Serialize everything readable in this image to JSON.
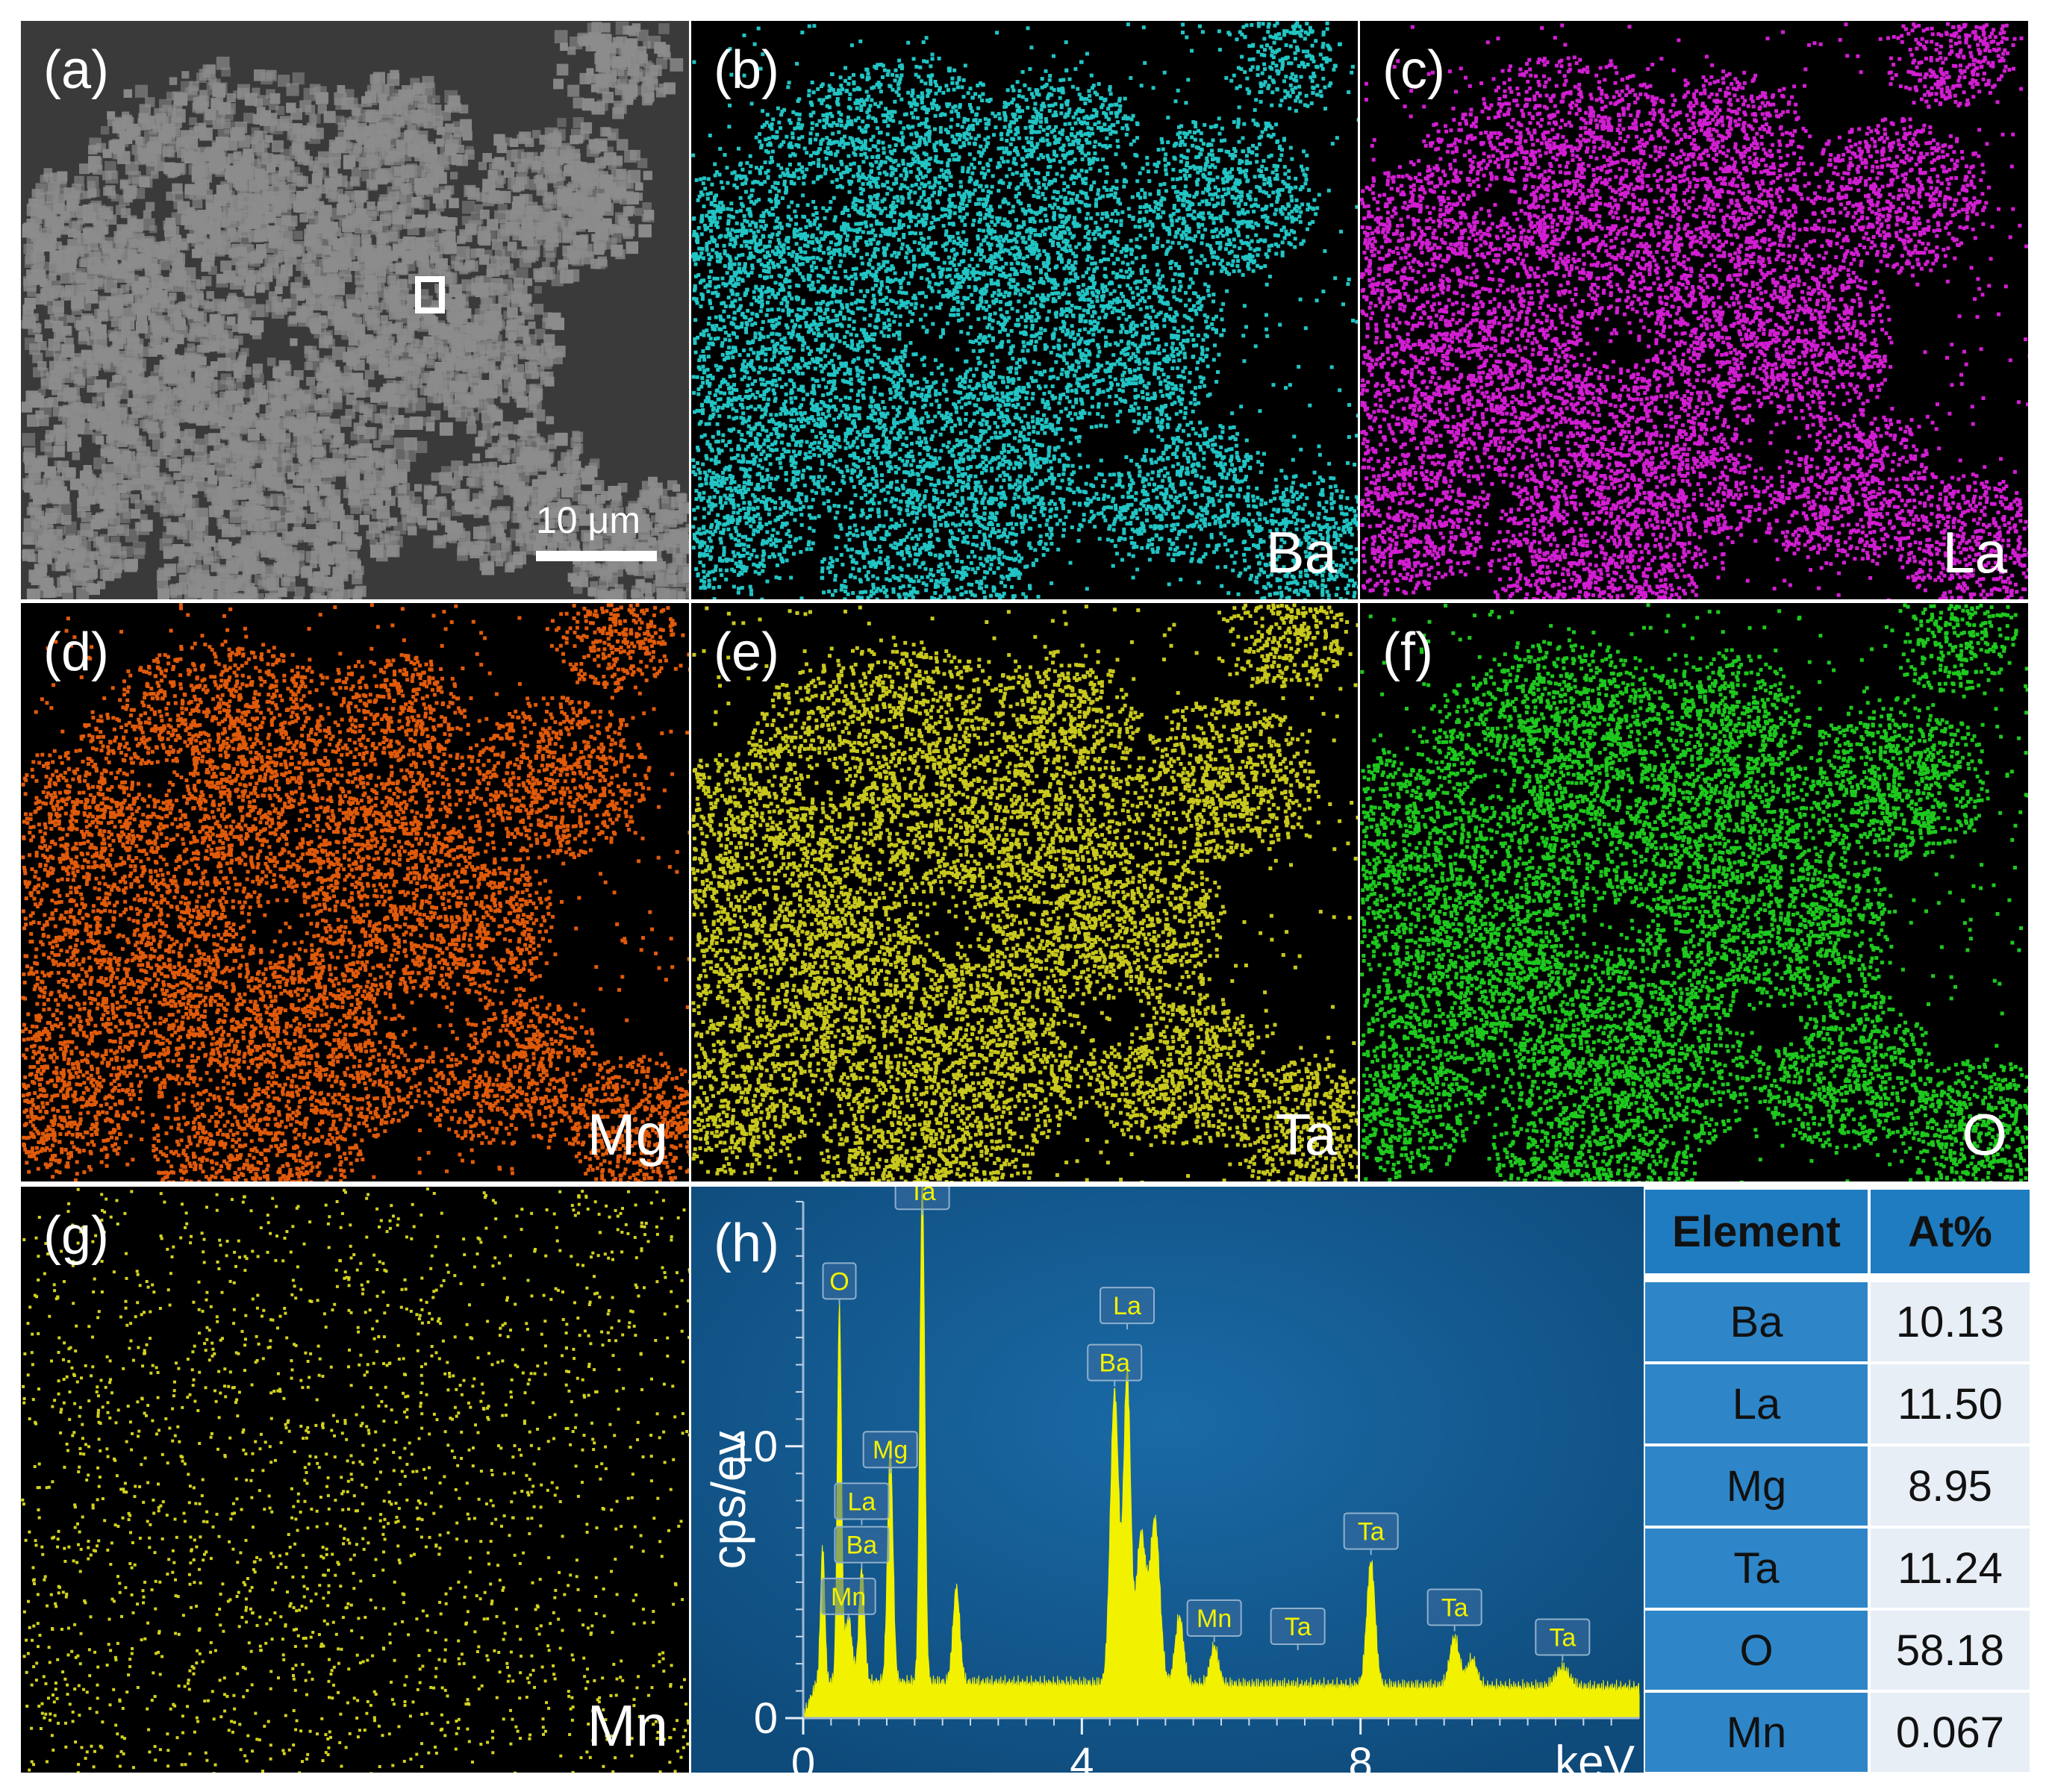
{
  "panels": [
    {
      "id": "a",
      "label": "(a)",
      "element": "",
      "kind": "sem",
      "color": "#8c8c8c"
    },
    {
      "id": "b",
      "label": "(b)",
      "element": "Ba",
      "kind": "map",
      "color": "#22c4c4"
    },
    {
      "id": "c",
      "label": "(c)",
      "element": "La",
      "kind": "map",
      "color": "#d21ed2"
    },
    {
      "id": "d",
      "label": "(d)",
      "element": "Mg",
      "kind": "map",
      "color": "#e05a0a"
    },
    {
      "id": "e",
      "label": "(e)",
      "element": "Ta",
      "kind": "map",
      "color": "#c8c81e"
    },
    {
      "id": "f",
      "label": "(f)",
      "element": "O",
      "kind": "map",
      "color": "#1ec81e"
    },
    {
      "id": "g",
      "label": "(g)",
      "element": "Mn",
      "kind": "sparse",
      "color": "#d2d21e"
    }
  ],
  "scale_bar": {
    "text": "10 μm"
  },
  "chart_data": {
    "type": "area",
    "label": "(h)",
    "xlabel": "keV",
    "ylabel": "cps/ev",
    "xlim": [
      0,
      12
    ],
    "ylim": [
      0,
      19
    ],
    "x_ticks": [
      0,
      4,
      8
    ],
    "y_ticks": [
      0,
      10
    ],
    "background": "#0e4a7a",
    "fill_color": "#f2f200",
    "baseline": 1.3,
    "peaks": [
      {
        "x": 0.28,
        "y": 5.0,
        "w": 0.03
      },
      {
        "x": 0.52,
        "y": 13.8,
        "w": 0.03
      },
      {
        "x": 0.65,
        "y": 2.4,
        "w": 0.05
      },
      {
        "x": 0.84,
        "y": 4.2,
        "w": 0.04
      },
      {
        "x": 1.25,
        "y": 8.5,
        "w": 0.04
      },
      {
        "x": 1.71,
        "y": 18.5,
        "w": 0.035
      },
      {
        "x": 2.2,
        "y": 3.5,
        "w": 0.05
      },
      {
        "x": 4.47,
        "y": 10.8,
        "w": 0.06
      },
      {
        "x": 4.65,
        "y": 11.4,
        "w": 0.05
      },
      {
        "x": 4.85,
        "y": 5.5,
        "w": 0.07
      },
      {
        "x": 5.05,
        "y": 6.0,
        "w": 0.07
      },
      {
        "x": 5.4,
        "y": 2.5,
        "w": 0.06
      },
      {
        "x": 5.9,
        "y": 1.4,
        "w": 0.06
      },
      {
        "x": 8.15,
        "y": 4.6,
        "w": 0.06
      },
      {
        "x": 9.35,
        "y": 1.8,
        "w": 0.07
      },
      {
        "x": 9.6,
        "y": 1.0,
        "w": 0.07
      },
      {
        "x": 10.9,
        "y": 0.7,
        "w": 0.1
      }
    ],
    "peak_labels": [
      {
        "text": "Ta",
        "x": 1.71,
        "y": 18.5
      },
      {
        "text": "O",
        "x": 0.52,
        "y": 15.2
      },
      {
        "text": "Mg",
        "x": 1.25,
        "y": 9.0
      },
      {
        "text": "La",
        "x": 0.84,
        "y": 7.1
      },
      {
        "text": "Ba",
        "x": 0.84,
        "y": 5.5
      },
      {
        "text": "Mn",
        "x": 0.65,
        "y": 3.6
      },
      {
        "text": "La",
        "x": 4.65,
        "y": 14.3
      },
      {
        "text": "Ba",
        "x": 4.47,
        "y": 12.2
      },
      {
        "text": "Mn",
        "x": 5.9,
        "y": 2.8
      },
      {
        "text": "Ta",
        "x": 7.1,
        "y": 2.5
      },
      {
        "text": "Ta",
        "x": 8.15,
        "y": 6.0
      },
      {
        "text": "Ta",
        "x": 9.35,
        "y": 3.2
      },
      {
        "text": "Ta",
        "x": 10.9,
        "y": 2.1
      }
    ]
  },
  "table": {
    "headers": [
      "Element",
      "At%"
    ],
    "rows": [
      {
        "element": "Ba",
        "value": "10.13"
      },
      {
        "element": "La",
        "value": "11.50"
      },
      {
        "element": "Mg",
        "value": "8.95"
      },
      {
        "element": "Ta",
        "value": "11.24"
      },
      {
        "element": "O",
        "value": "58.18"
      },
      {
        "element": "Mn",
        "value": "0.067"
      }
    ]
  }
}
